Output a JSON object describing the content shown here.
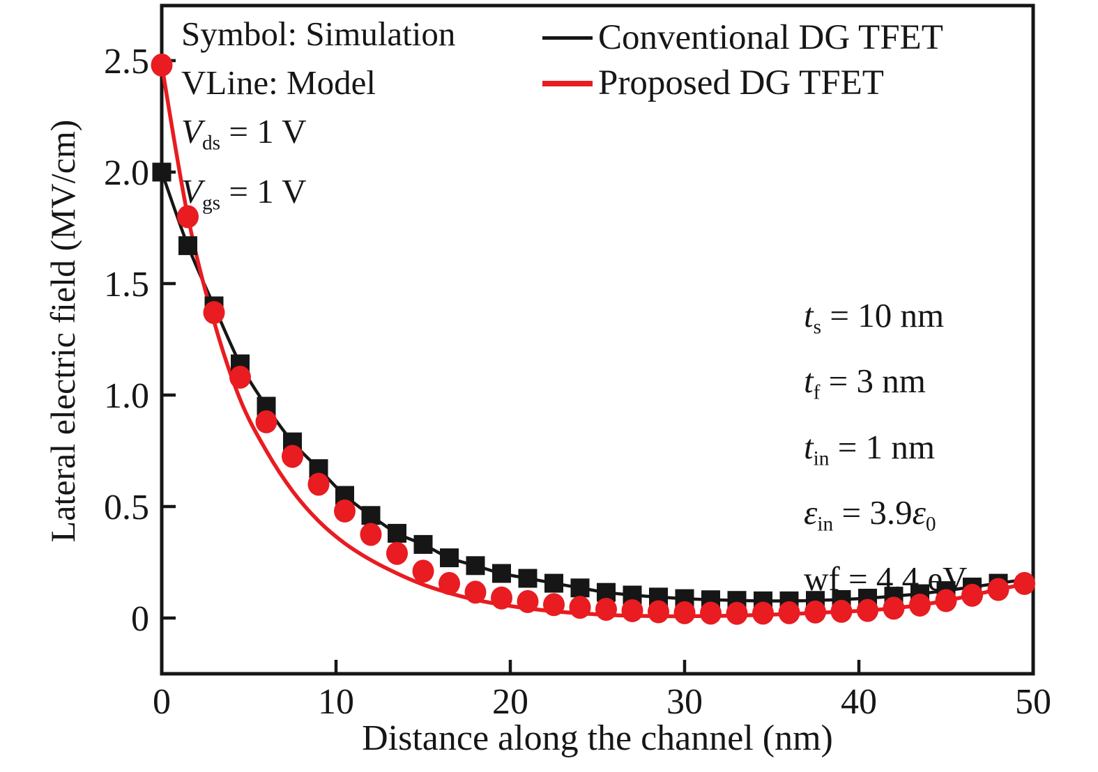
{
  "figure": {
    "background": "#ffffff"
  },
  "colors": {
    "black": "#161616",
    "red": "#e81c21"
  },
  "legend": {
    "items": [
      {
        "label": "Conventional DG TFET",
        "color": "#161616",
        "swatch_thickness": 5
      },
      {
        "label": "Proposed DG TFET",
        "color": "#e81c21",
        "swatch_thickness": 8
      }
    ]
  },
  "annotations": {
    "top_left": [
      [
        {
          "t": "Symbol: Simulation"
        }
      ],
      [
        {
          "t": "VLine: Model"
        }
      ],
      [
        {
          "t": "V",
          "i": true
        },
        {
          "t": "ds",
          "sub": true
        },
        {
          "t": " = 1 V"
        }
      ],
      [
        {
          "t": "V",
          "i": true
        },
        {
          "t": "gs",
          "sub": true
        },
        {
          "t": " = 1 V"
        }
      ]
    ],
    "right": [
      [
        {
          "t": "t",
          "i": true
        },
        {
          "t": "s",
          "sub": true
        },
        {
          "t": " = 10 nm"
        }
      ],
      [
        {
          "t": "t",
          "i": true
        },
        {
          "t": "f",
          "sub": true
        },
        {
          "t": " = 3 nm"
        }
      ],
      [
        {
          "t": "t",
          "i": true
        },
        {
          "t": "in",
          "sub": true
        },
        {
          "t": " = 1 nm"
        }
      ],
      [
        {
          "t": "ε",
          "i": true
        },
        {
          "t": "in",
          "sub": true
        },
        {
          "t": " = 3.9"
        },
        {
          "t": "ε",
          "i": true
        },
        {
          "t": "0",
          "sub": true
        }
      ],
      [
        {
          "t": "wf = 4.4 eV"
        }
      ]
    ]
  },
  "chart_data": {
    "type": "line+scatter",
    "title": "",
    "xlabel": "Distance along the channel (nm)",
    "ylabel": "Lateral electric field (MV/cm)",
    "xlim": [
      0,
      50
    ],
    "ylim": [
      -0.25,
      2.75
    ],
    "grid": false,
    "legend_position": "top",
    "xticks": [
      "0",
      "10",
      "20",
      "30",
      "40",
      "50"
    ],
    "xtick_values": [
      0,
      10,
      20,
      30,
      40,
      50
    ],
    "yticks": [
      "0",
      "0.5",
      "1.0",
      "1.5",
      "2.0",
      "2.5"
    ],
    "ytick_values": [
      0,
      0.5,
      1.0,
      1.5,
      2.0,
      2.5
    ],
    "series": [
      {
        "name": "Conventional DG TFET - model (line)",
        "role": "line",
        "color": "#161616",
        "stroke_width": 4.5,
        "x": [
          0,
          1.5,
          3,
          4.5,
          6,
          7.5,
          9,
          10.5,
          12,
          13.5,
          15,
          16.5,
          18,
          19.5,
          21,
          22.5,
          24,
          25.5,
          27,
          28.5,
          30,
          31.5,
          33,
          34.5,
          36,
          37.5,
          39,
          40.5,
          42,
          43.5,
          45,
          46.5,
          48,
          50
        ],
        "y": [
          2.0,
          1.67,
          1.4,
          1.14,
          0.95,
          0.79,
          0.67,
          0.55,
          0.46,
          0.38,
          0.33,
          0.27,
          0.235,
          0.2,
          0.178,
          0.156,
          0.135,
          0.115,
          0.103,
          0.094,
          0.087,
          0.082,
          0.079,
          0.077,
          0.077,
          0.079,
          0.083,
          0.089,
          0.098,
          0.109,
          0.123,
          0.139,
          0.156,
          0.178
        ]
      },
      {
        "name": "Proposed DG TFET - model (line)",
        "role": "line",
        "color": "#e81c21",
        "stroke_width": 5.5,
        "x": [
          0,
          1.5,
          3,
          4.5,
          6,
          7.5,
          9,
          10.5,
          12,
          13.5,
          15,
          16.5,
          18,
          19.5,
          21,
          22.5,
          24,
          25.5,
          27,
          28.5,
          30,
          31.5,
          33,
          34.5,
          36,
          37.5,
          39,
          40.5,
          42,
          43.5,
          45,
          46.5,
          48,
          50
        ],
        "y": [
          2.48,
          1.8,
          1.33,
          0.98,
          0.75,
          0.57,
          0.435,
          0.335,
          0.26,
          0.2,
          0.15,
          0.112,
          0.082,
          0.06,
          0.043,
          0.03,
          0.021,
          0.014,
          0.01,
          0.008,
          0.008,
          0.009,
          0.011,
          0.014,
          0.018,
          0.023,
          0.028,
          0.034,
          0.044,
          0.058,
          0.078,
          0.102,
          0.128,
          0.16
        ]
      },
      {
        "name": "Conventional DG TFET - simulation (symbols)",
        "role": "scatter",
        "marker": "square",
        "marker_size": 27,
        "color": "#161616",
        "x": [
          0,
          1.5,
          3,
          4.5,
          6,
          7.5,
          9,
          10.5,
          12,
          13.5,
          15,
          16.5,
          18,
          19.5,
          21,
          22.5,
          24,
          25.5,
          27,
          28.5,
          30,
          31.5,
          33,
          34.5,
          36,
          37.5,
          39,
          40.5,
          42,
          43.5,
          45,
          46.5,
          48
        ],
        "y": [
          2.0,
          1.67,
          1.4,
          1.14,
          0.95,
          0.79,
          0.67,
          0.55,
          0.46,
          0.38,
          0.33,
          0.27,
          0.235,
          0.2,
          0.178,
          0.156,
          0.135,
          0.115,
          0.103,
          0.094,
          0.087,
          0.082,
          0.079,
          0.077,
          0.077,
          0.079,
          0.083,
          0.089,
          0.098,
          0.109,
          0.123,
          0.139,
          0.156
        ]
      },
      {
        "name": "Proposed DG TFET - simulation (symbols)",
        "role": "scatter",
        "marker": "circle",
        "marker_size": 31,
        "color": "#e81c21",
        "x": [
          0,
          1.5,
          3,
          4.5,
          6,
          7.5,
          9,
          10.5,
          12,
          13.5,
          15,
          16.5,
          18,
          19.5,
          21,
          22.5,
          24,
          25.5,
          27,
          28.5,
          30,
          31.5,
          33,
          34.5,
          36,
          37.5,
          39,
          40.5,
          42,
          43.5,
          45,
          46.5,
          48,
          49.5
        ],
        "y": [
          2.48,
          1.8,
          1.37,
          1.08,
          0.88,
          0.725,
          0.6,
          0.48,
          0.375,
          0.29,
          0.21,
          0.155,
          0.116,
          0.09,
          0.074,
          0.06,
          0.048,
          0.039,
          0.033,
          0.028,
          0.024,
          0.022,
          0.021,
          0.022,
          0.024,
          0.027,
          0.03,
          0.034,
          0.044,
          0.058,
          0.078,
          0.102,
          0.128,
          0.155
        ]
      }
    ]
  }
}
